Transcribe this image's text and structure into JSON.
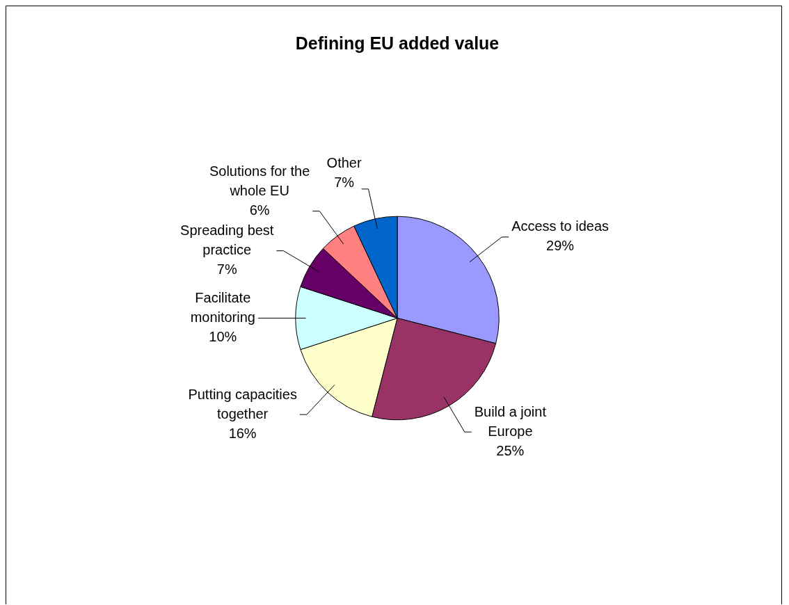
{
  "chart_data": {
    "type": "pie",
    "title": "Defining EU added value",
    "categories": [
      "Access to ideas",
      "Build a joint Europe",
      "Putting capacities together",
      "Facilitate monitoring",
      "Spreading best practice",
      "Solutions for the whole EU",
      "Other"
    ],
    "values": [
      29,
      25,
      16,
      10,
      7,
      6,
      7
    ],
    "colors": [
      "#9999ff",
      "#993366",
      "#ffffcc",
      "#ccffff",
      "#660066",
      "#ff8080",
      "#0066cc"
    ],
    "value_labels": [
      "29%",
      "25%",
      "16%",
      "10%",
      "7%",
      "6%",
      "7%"
    ],
    "legend": false
  }
}
